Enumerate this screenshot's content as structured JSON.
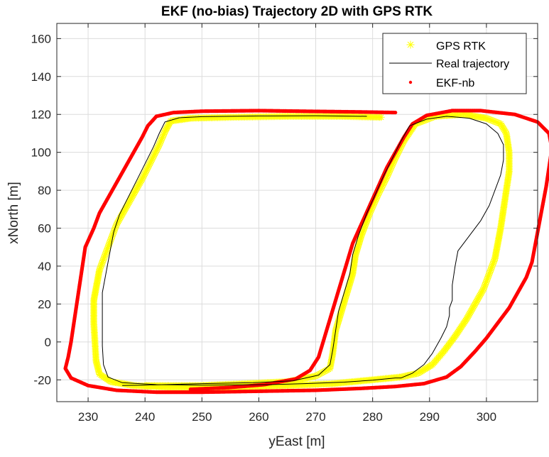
{
  "chart_data": {
    "type": "line",
    "title": "EKF (no-bias) Trajectory 2D with GPS RTK",
    "xlabel": "yEast [m]",
    "ylabel": "xNorth [m]",
    "xlim": [
      224.5,
      309
    ],
    "ylim": [
      -31.5,
      168
    ],
    "xticks": [
      230,
      240,
      250,
      260,
      270,
      280,
      290,
      300
    ],
    "yticks": [
      -20,
      0,
      20,
      40,
      60,
      80,
      100,
      120,
      140,
      160
    ],
    "xtick_labels": [
      "230",
      "240",
      "250",
      "260",
      "270",
      "280",
      "290",
      "300"
    ],
    "ytick_labels": [
      "-20",
      "0",
      "20",
      "40",
      "60",
      "80",
      "100",
      "120",
      "140",
      "160"
    ],
    "grid": true,
    "legend_position": "top-right",
    "legend": [
      "GPS RTK",
      "Real trajectory",
      "EKF-nb"
    ],
    "series": [
      {
        "name": "GPS RTK",
        "marker": "asterisk",
        "color": "#ffff00",
        "points": [
          [
            281.5,
            118.5
          ],
          [
            275,
            119
          ],
          [
            265,
            119
          ],
          [
            255,
            118.5
          ],
          [
            248,
            118
          ],
          [
            244.5,
            116.5
          ],
          [
            243.5,
            111
          ],
          [
            242.5,
            104
          ],
          [
            241,
            95
          ],
          [
            239.5,
            86
          ],
          [
            238,
            78
          ],
          [
            236.5,
            70
          ],
          [
            235,
            62
          ],
          [
            234,
            54
          ],
          [
            233,
            46
          ],
          [
            232,
            38
          ],
          [
            231.5,
            30
          ],
          [
            231,
            22
          ],
          [
            231,
            10
          ],
          [
            231.2,
            0
          ],
          [
            231.4,
            -10
          ],
          [
            232,
            -17
          ],
          [
            234,
            -21
          ],
          [
            238,
            -23
          ],
          [
            245,
            -24
          ],
          [
            255,
            -24
          ],
          [
            265,
            -23
          ],
          [
            273,
            -22
          ],
          [
            280,
            -20
          ],
          [
            285,
            -18.5
          ],
          [
            288,
            -16.5
          ],
          [
            290.5,
            -12
          ],
          [
            292.5,
            -5
          ],
          [
            294.5,
            3
          ],
          [
            296.5,
            12
          ],
          [
            298,
            20
          ],
          [
            299.5,
            28
          ],
          [
            300.5,
            36
          ],
          [
            301.5,
            44
          ],
          [
            302,
            52
          ],
          [
            302.5,
            60
          ],
          [
            303,
            70
          ],
          [
            303.5,
            80
          ],
          [
            304,
            90
          ],
          [
            304,
            100
          ],
          [
            303.5,
            110
          ],
          [
            302.5,
            115
          ],
          [
            300,
            118
          ],
          [
            296,
            120
          ],
          [
            291,
            119
          ],
          [
            287.5,
            115
          ],
          [
            285.5,
            106
          ],
          [
            284,
            97
          ],
          [
            282.5,
            87
          ],
          [
            281,
            78
          ],
          [
            279.5,
            68
          ],
          [
            278,
            56
          ],
          [
            277,
            46
          ],
          [
            276.5,
            36
          ],
          [
            275.5,
            26
          ],
          [
            274.5,
            16
          ],
          [
            273.5,
            6
          ],
          [
            273,
            -6
          ],
          [
            272.5,
            -14
          ],
          [
            270,
            -18
          ],
          [
            265,
            -21
          ],
          [
            258,
            -22
          ],
          [
            250,
            -23
          ],
          [
            240,
            -23
          ]
        ]
      },
      {
        "name": "Real trajectory",
        "line": "solid",
        "color": "#000000",
        "points": [
          [
            279,
            119
          ],
          [
            270,
            119.3
          ],
          [
            260,
            119.2
          ],
          [
            250,
            118.8
          ],
          [
            246,
            118.2
          ],
          [
            243.5,
            116
          ],
          [
            242.5,
            110
          ],
          [
            241.5,
            103
          ],
          [
            240,
            94
          ],
          [
            238.5,
            85
          ],
          [
            237,
            76
          ],
          [
            235.5,
            67
          ],
          [
            234.5,
            58
          ],
          [
            234,
            50
          ],
          [
            233.5,
            42
          ],
          [
            233,
            34
          ],
          [
            232.5,
            26
          ],
          [
            232.5,
            18
          ],
          [
            232.5,
            8
          ],
          [
            232.5,
            -2
          ],
          [
            232.7,
            -12
          ],
          [
            233.5,
            -18.5
          ],
          [
            236,
            -21.5
          ],
          [
            242,
            -22.5
          ],
          [
            250,
            -22.8
          ],
          [
            262,
            -22.5
          ],
          [
            268,
            -22
          ],
          [
            275,
            -21.2
          ],
          [
            280,
            -20.2
          ],
          [
            284,
            -19
          ],
          [
            285,
            -19
          ],
          [
            287,
            -16.5
          ],
          [
            289,
            -12
          ],
          [
            290.5,
            -6
          ],
          [
            292,
            2
          ],
          [
            293,
            8
          ],
          [
            293.5,
            14
          ],
          [
            293.5,
            18
          ],
          [
            294,
            22
          ],
          [
            294,
            30
          ],
          [
            294.5,
            40
          ],
          [
            295,
            48
          ],
          [
            297,
            56
          ],
          [
            299,
            64
          ],
          [
            300.5,
            72
          ],
          [
            301.5,
            80
          ],
          [
            302.5,
            88
          ],
          [
            303,
            96
          ],
          [
            303,
            104
          ],
          [
            302,
            110
          ],
          [
            300,
            115
          ],
          [
            297,
            118
          ],
          [
            293,
            119
          ],
          [
            289.5,
            117.5
          ],
          [
            286.5,
            114
          ],
          [
            285,
            106
          ],
          [
            283.5,
            97
          ],
          [
            282,
            88
          ],
          [
            280.5,
            78
          ],
          [
            279,
            68
          ],
          [
            277.5,
            56
          ],
          [
            276.5,
            46
          ],
          [
            276,
            36
          ],
          [
            275,
            26
          ],
          [
            274,
            16
          ],
          [
            273.5,
            6
          ],
          [
            273,
            -4
          ],
          [
            272.5,
            -12
          ],
          [
            270.5,
            -17.5
          ],
          [
            266,
            -20.5
          ],
          [
            259,
            -21.5
          ],
          [
            250,
            -22
          ],
          [
            240,
            -22.8
          ],
          [
            236,
            -23
          ]
        ]
      },
      {
        "name": "EKF-nb",
        "marker": "dot",
        "color": "#ff0000",
        "points": [
          [
            284,
            121
          ],
          [
            278,
            121.3
          ],
          [
            270,
            121.6
          ],
          [
            260,
            122
          ],
          [
            250,
            121.7
          ],
          [
            245,
            121
          ],
          [
            242,
            119
          ],
          [
            240.5,
            114
          ],
          [
            239.5,
            108
          ],
          [
            238,
            100
          ],
          [
            236.5,
            92
          ],
          [
            235,
            84
          ],
          [
            233.5,
            76
          ],
          [
            232,
            68
          ],
          [
            231,
            60
          ],
          [
            229.5,
            50
          ],
          [
            229,
            40
          ],
          [
            228.5,
            30
          ],
          [
            228,
            20
          ],
          [
            227.5,
            10
          ],
          [
            227,
            0
          ],
          [
            226.5,
            -8
          ],
          [
            226,
            -14
          ],
          [
            227,
            -19
          ],
          [
            230,
            -23
          ],
          [
            235,
            -25.5
          ],
          [
            242,
            -26.5
          ],
          [
            250,
            -26.5
          ],
          [
            260,
            -26
          ],
          [
            270,
            -25.5
          ],
          [
            278,
            -24.5
          ],
          [
            284,
            -23.5
          ],
          [
            289,
            -22
          ],
          [
            293,
            -18.5
          ],
          [
            295.5,
            -13
          ],
          [
            298,
            -5
          ],
          [
            300,
            2
          ],
          [
            302,
            10
          ],
          [
            304,
            18
          ],
          [
            305.5,
            26
          ],
          [
            307,
            34
          ],
          [
            308,
            42
          ],
          [
            308.5,
            50
          ],
          [
            309,
            58
          ],
          [
            309.5,
            66
          ],
          [
            310,
            74
          ],
          [
            310.5,
            82
          ],
          [
            311,
            92
          ],
          [
            311.5,
            102
          ],
          [
            311,
            110
          ],
          [
            309,
            116
          ],
          [
            305,
            120
          ],
          [
            299,
            122
          ],
          [
            294,
            122
          ],
          [
            289.5,
            119.5
          ],
          [
            287,
            115
          ],
          [
            285.5,
            108
          ],
          [
            284,
            100
          ],
          [
            282.5,
            92
          ],
          [
            281,
            82
          ],
          [
            279.5,
            72
          ],
          [
            278,
            62
          ],
          [
            276.5,
            52
          ],
          [
            275.5,
            42
          ],
          [
            274.5,
            32
          ],
          [
            273.5,
            22
          ],
          [
            272.5,
            12
          ],
          [
            271.5,
            2
          ],
          [
            270.5,
            -8
          ],
          [
            269,
            -15
          ],
          [
            266.5,
            -19.5
          ],
          [
            261,
            -22.5
          ],
          [
            255,
            -24
          ],
          [
            248,
            -25
          ]
        ]
      }
    ]
  }
}
